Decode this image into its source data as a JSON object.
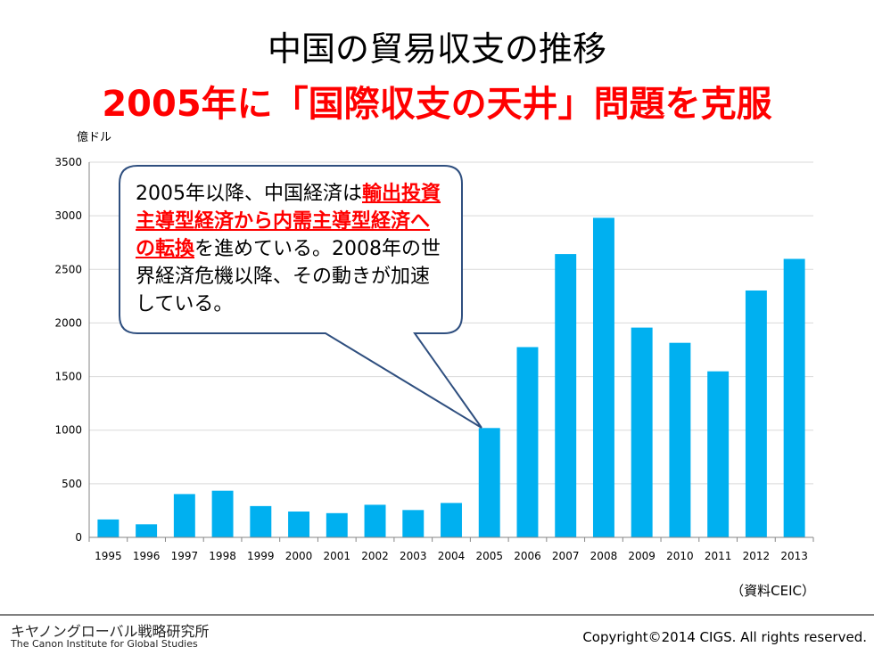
{
  "slide": {
    "title_line1": "中国の貿易収支の推移",
    "title_line2": "2005年に「国際収支の天井」問題を克服",
    "unit_label": "億ドル",
    "callout": {
      "text_before": "2005年以降、中国経済は",
      "emphasis": "輸出投資主導型経済から内需主導型経済への転換",
      "text_after": "を進めている。2008年の世界経済危機以降、その動きが加速している。"
    },
    "source_note": "（資料CEIC）",
    "org_name_ja": "キヤノングローバル戦略研究所",
    "org_name_en": "The Canon Institute for Global Studies",
    "copyright": "Copyright©2014 CIGS. All rights reserved."
  },
  "colors": {
    "bar": "#00b0f0",
    "title_emphasis": "#ff0000",
    "callout_border": "#2f4f7f",
    "gridline": "#d9d9d9"
  },
  "chart_data": {
    "type": "bar",
    "categories": [
      "1995",
      "1996",
      "1997",
      "1998",
      "1999",
      "2000",
      "2001",
      "2002",
      "2003",
      "2004",
      "2005",
      "2006",
      "2007",
      "2008",
      "2009",
      "2010",
      "2011",
      "2012",
      "2013"
    ],
    "values": [
      167,
      122,
      404,
      435,
      292,
      241,
      226,
      304,
      255,
      321,
      1020,
      1775,
      2643,
      2981,
      1957,
      1815,
      1549,
      2303,
      2598
    ],
    "yticks": [
      0,
      500,
      1000,
      1500,
      2000,
      2500,
      3000,
      3500
    ],
    "ylim": [
      0,
      3500
    ],
    "ylabel": "億ドル",
    "grid": true,
    "legend": "none"
  }
}
